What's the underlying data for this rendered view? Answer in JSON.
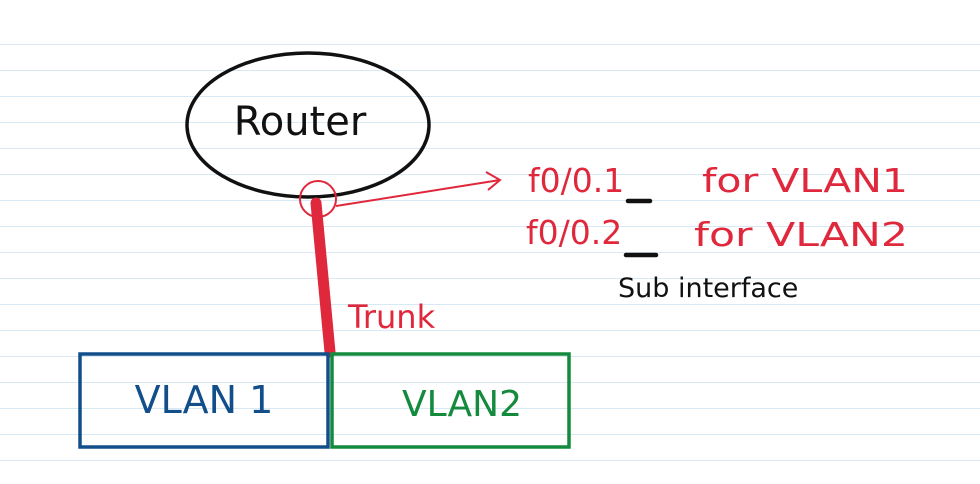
{
  "router": {
    "label": "Router"
  },
  "link": {
    "label": "Trunk"
  },
  "subinterfaces": {
    "rows": [
      {
        "interface_prefix": "f0/0.",
        "vlan_id": "1",
        "suffix": "for VLAN1"
      },
      {
        "interface_prefix": "f0/0.",
        "vlan_id": "2",
        "suffix": "for VLAN2"
      }
    ],
    "note": "Sub interface"
  },
  "vlans": [
    {
      "label": "VLAN 1",
      "color": "#124f8a"
    },
    {
      "label": "VLAN2",
      "color": "#138a3c"
    }
  ],
  "colors": {
    "annotation": "#e0283c",
    "ink": "#111111",
    "ruled_lines": "#d6e9f5"
  }
}
